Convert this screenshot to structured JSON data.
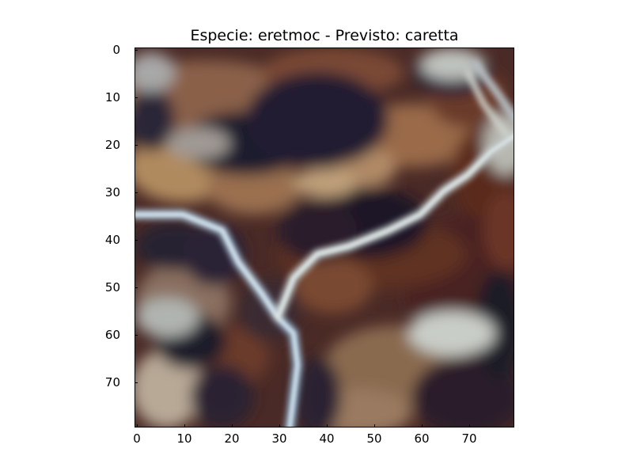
{
  "figure": {
    "title": "Especie: eretmoc - Previsto: caretta"
  },
  "axes": {
    "y_ticks": [
      "0",
      "10",
      "20",
      "30",
      "40",
      "50",
      "60",
      "70"
    ],
    "x_ticks": [
      "0",
      "10",
      "20",
      "30",
      "40",
      "50",
      "60",
      "70"
    ],
    "xlim": [
      0,
      80
    ],
    "ylim": [
      0,
      80
    ]
  },
  "image": {
    "subject": "close-up of turtle shell scute pattern",
    "colors": {
      "dark": "#1e1a2e",
      "brown": "#5a2c1e",
      "tan": "#b08a5e",
      "pale": "#c9cdc8",
      "blue_pale": "#a9c0d2"
    }
  }
}
